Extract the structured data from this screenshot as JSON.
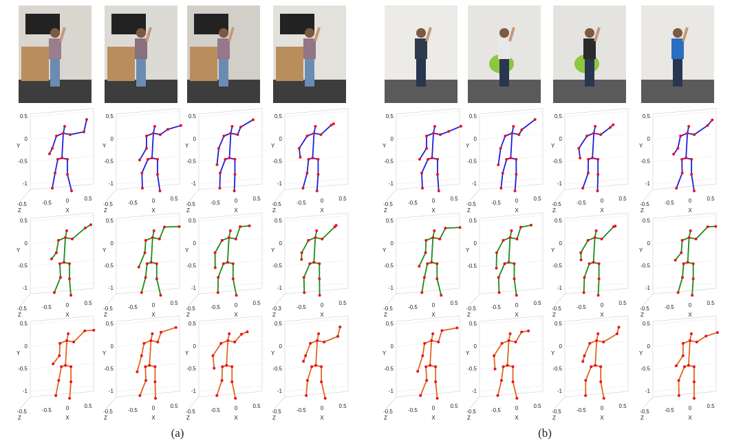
{
  "figure": {
    "groups": [
      {
        "caption": "(a)",
        "rows": [
          {
            "color": "#1c1ce0",
            "plots": [
              {
                "y_label": "Y",
                "x_label": "X",
                "z_label": "Z",
                "yticks": [
                  "0.5",
                  "0",
                  "-0.5",
                  "-1"
                ],
                "xticks": [
                  "-0.5",
                  "0",
                  "0.5"
                ],
                "zticks": [
                  "-0.5"
                ]
              },
              {
                "y_label": "Y",
                "x_label": "X",
                "z_label": "Z",
                "yticks": [
                  "0.5",
                  "0",
                  "-0.5",
                  "-1"
                ],
                "xticks": [
                  "-0.5",
                  "0",
                  "0.5"
                ],
                "zticks": [
                  "-0.5"
                ]
              },
              {
                "y_label": "Y",
                "x_label": "X",
                "z_label": "Z",
                "yticks": [
                  "0.5",
                  "0",
                  "-0.5",
                  "-1"
                ],
                "xticks": [
                  "-0.5",
                  "0",
                  "0.5"
                ],
                "zticks": [
                  "-0.5"
                ]
              },
              {
                "y_label": "Y",
                "x_label": "X",
                "z_label": "Z",
                "yticks": [
                  "0.5",
                  "0",
                  "-0.5",
                  "-1"
                ],
                "xticks": [
                  "-0.5",
                  "0",
                  "0.5"
                ],
                "zticks": [
                  "-0.5"
                ]
              }
            ]
          },
          {
            "color": "#1a8a1a",
            "plots": [
              {
                "y_label": "Y",
                "x_label": "X",
                "z_label": "Z",
                "yticks": [
                  "0.5",
                  "0",
                  "-0.5",
                  "-1"
                ],
                "xticks": [
                  "-0.5",
                  "0",
                  "0.5"
                ],
                "zticks": [
                  "-0.5"
                ]
              },
              {
                "y_label": "Y",
                "x_label": "X",
                "z_label": "Z",
                "yticks": [
                  "0.5",
                  "0",
                  "-0.5",
                  "-1"
                ],
                "xticks": [
                  "-0.5",
                  "0",
                  "0.5"
                ],
                "zticks": [
                  "-0.5"
                ]
              },
              {
                "y_label": "Y",
                "x_label": "X",
                "z_label": "Z",
                "yticks": [
                  "0.5",
                  "0",
                  "-0.5",
                  "-1"
                ],
                "xticks": [
                  "-0.5",
                  "0",
                  "0.5"
                ],
                "zticks": [
                  "-0.5"
                ]
              },
              {
                "y_label": "Y",
                "x_label": "X",
                "z_label": "Z",
                "yticks": [
                  "0.5",
                  "0",
                  "-0.5",
                  "-1"
                ],
                "xticks": [
                  "-0.5",
                  "0",
                  "0.5"
                ],
                "zticks": [
                  "-0.3"
                ]
              }
            ]
          },
          {
            "color": "#e0661e",
            "plots": [
              {
                "y_label": "Y",
                "x_label": "X",
                "z_label": "Z",
                "yticks": [
                  "0.5",
                  "0",
                  "-0.5",
                  "-1"
                ],
                "xticks": [
                  "-0.5",
                  "0",
                  "0.5"
                ],
                "zticks": [
                  "-0.5"
                ]
              },
              {
                "y_label": "Y",
                "x_label": "X",
                "z_label": "Z",
                "yticks": [
                  "0.5",
                  "0",
                  "-0.5",
                  "-1"
                ],
                "xticks": [
                  "-0.5",
                  "0",
                  "0.5"
                ],
                "zticks": [
                  "-0.5"
                ]
              },
              {
                "y_label": "Y",
                "x_label": "X",
                "z_label": "Z",
                "yticks": [
                  "0.5",
                  "0",
                  "-0.5",
                  "-1"
                ],
                "xticks": [
                  "-0.5",
                  "0",
                  "0.5"
                ],
                "zticks": [
                  "-0.5"
                ]
              },
              {
                "y_label": "Y",
                "x_label": "X",
                "z_label": "Z",
                "yticks": [
                  "0.5",
                  "0",
                  "-0.5",
                  "-1"
                ],
                "xticks": [
                  "-0.5",
                  "0",
                  "0.5"
                ],
                "zticks": [
                  "-0.5"
                ]
              }
            ]
          }
        ]
      },
      {
        "caption": "(b)",
        "rows": [
          {
            "color": "#1c1ce0",
            "plots": [
              {
                "y_label": "Y",
                "x_label": "X",
                "z_label": "Z",
                "yticks": [
                  "0.5",
                  "0",
                  "-0.5",
                  "-1"
                ],
                "xticks": [
                  "-0.5",
                  "0",
                  "0.5"
                ],
                "zticks": [
                  "-0.5"
                ]
              },
              {
                "y_label": "Y",
                "x_label": "X",
                "z_label": "Z",
                "yticks": [
                  "0.5",
                  "0",
                  "-0.5",
                  "-1"
                ],
                "xticks": [
                  "-0.5",
                  "0",
                  "0.5"
                ],
                "zticks": [
                  "-0.5"
                ]
              },
              {
                "y_label": "Y",
                "x_label": "X",
                "z_label": "Z",
                "yticks": [
                  "0.5",
                  "0",
                  "-0.5",
                  "-1"
                ],
                "xticks": [
                  "-0.5",
                  "0",
                  "0.5"
                ],
                "zticks": [
                  "-0.5"
                ]
              },
              {
                "y_label": "Y",
                "x_label": "X",
                "z_label": "Z",
                "yticks": [
                  "0.5",
                  "0",
                  "-0.5",
                  "-1"
                ],
                "xticks": [
                  "-0.5",
                  "0",
                  "0.5"
                ],
                "zticks": [
                  "-0.5"
                ]
              }
            ]
          },
          {
            "color": "#1a8a1a",
            "plots": [
              {
                "y_label": "Y",
                "x_label": "X",
                "z_label": "Z",
                "yticks": [
                  "0.5",
                  "0",
                  "-0.5",
                  "-1"
                ],
                "xticks": [
                  "-0.5",
                  "0",
                  "0.5"
                ],
                "zticks": [
                  "-0.5"
                ]
              },
              {
                "y_label": "Y",
                "x_label": "X",
                "z_label": "Z",
                "yticks": [
                  "0.5",
                  "0",
                  "-0.5"
                ],
                "xticks": [
                  "-0.5",
                  "0",
                  "0.5"
                ],
                "zticks": [
                  "-0.5"
                ]
              },
              {
                "y_label": "Y",
                "x_label": "X",
                "z_label": "Z",
                "yticks": [
                  "0.5",
                  "0",
                  "-0.5",
                  "-1"
                ],
                "xticks": [
                  "-0.5",
                  "0",
                  "0.5"
                ],
                "zticks": [
                  "-0.5"
                ]
              },
              {
                "y_label": "Y",
                "x_label": "X",
                "z_label": "Z",
                "yticks": [
                  "0.5",
                  "0",
                  "-0.5",
                  "-1"
                ],
                "xticks": [
                  "-0.5",
                  "0",
                  "0.5"
                ],
                "zticks": [
                  "-0.5"
                ]
              }
            ]
          },
          {
            "color": "#e0661e",
            "plots": [
              {
                "y_label": "Y",
                "x_label": "X",
                "z_label": "Z",
                "yticks": [
                  "0.5",
                  "0",
                  "-0.5",
                  "-1"
                ],
                "xticks": [
                  "-0.5",
                  "0",
                  "0.5"
                ],
                "zticks": [
                  "-0.5"
                ]
              },
              {
                "y_label": "Y",
                "x_label": "X",
                "z_label": "Z",
                "yticks": [
                  "0.5",
                  "0",
                  "-0.5",
                  "-1"
                ],
                "xticks": [
                  "-0.5",
                  "0",
                  "0.5"
                ],
                "zticks": [
                  "-0.5"
                ]
              },
              {
                "y_label": "Y",
                "x_label": "X",
                "z_label": "Z",
                "yticks": [
                  "0.5",
                  "0",
                  "-0.5",
                  "-1"
                ],
                "xticks": [
                  "-0.5",
                  "0",
                  "0.5"
                ],
                "zticks": [
                  "-0.5"
                ]
              },
              {
                "y_label": "Y",
                "x_label": "X",
                "z_label": "Z",
                "yticks": [
                  "0.5",
                  "0",
                  "-0.5",
                  "-1"
                ],
                "xticks": [
                  "-0.5",
                  "0",
                  "0.5"
                ],
                "zticks": [
                  "-0.5"
                ]
              }
            ]
          }
        ]
      }
    ]
  }
}
